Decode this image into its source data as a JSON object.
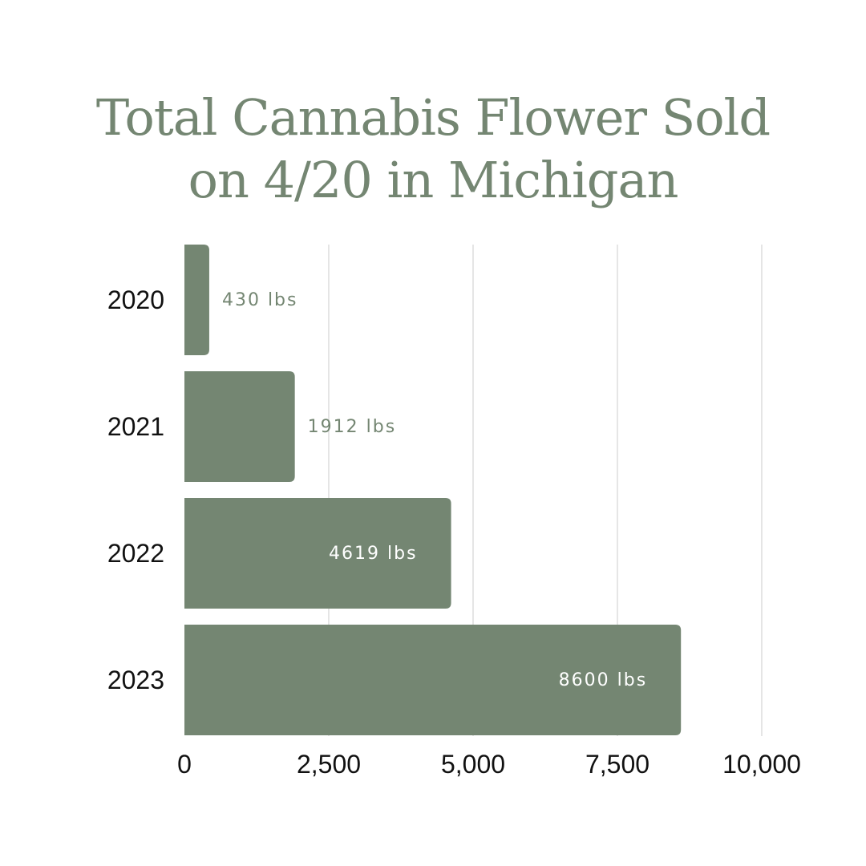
{
  "title_lines": [
    "Total Cannabis Flower Sold",
    "on 4/20 in Michigan"
  ],
  "colors": {
    "bar": "#748672",
    "title": "#748672",
    "grid": "#d4d4d4",
    "label_inside": "#ffffff",
    "label_outside": "#748672",
    "axis_text": "#111111"
  },
  "chart_data": {
    "type": "bar",
    "orientation": "horizontal",
    "title": "Total Cannabis Flower Sold on 4/20 in Michigan",
    "categories": [
      "2020",
      "2021",
      "2022",
      "2023"
    ],
    "values": [
      430,
      1912,
      4619,
      8600
    ],
    "data_labels": [
      "430 lbs",
      "1912 lbs",
      "4619 lbs",
      "8600 lbs"
    ],
    "x_ticks": [
      0,
      2500,
      5000,
      7500,
      10000
    ],
    "x_tick_labels": [
      "0",
      "2,500",
      "5,000",
      "7,500",
      "10,000"
    ],
    "xlim": [
      0,
      10000
    ],
    "xlabel": "",
    "ylabel": "",
    "grid": "vertical"
  }
}
